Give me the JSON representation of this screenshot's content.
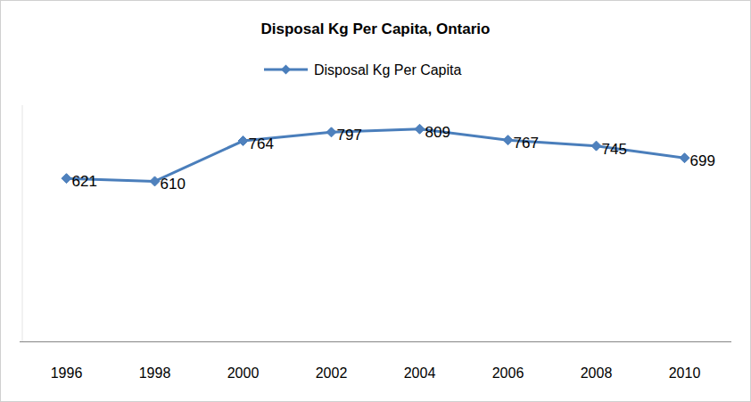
{
  "chart_data": {
    "type": "line",
    "title": "Disposal Kg Per Capita, Ontario",
    "categories": [
      "1996",
      "1998",
      "2000",
      "2002",
      "2004",
      "2006",
      "2008",
      "2010"
    ],
    "series": [
      {
        "name": "Disposal Kg Per Capita",
        "color": "#4a7ebb",
        "marker": "diamond",
        "values": [
          621,
          610,
          764,
          797,
          809,
          767,
          745,
          699
        ]
      }
    ],
    "ylim": [
      0,
      900
    ],
    "data_labels": true,
    "tick_labels": "x",
    "legend": "top",
    "grid": false
  }
}
